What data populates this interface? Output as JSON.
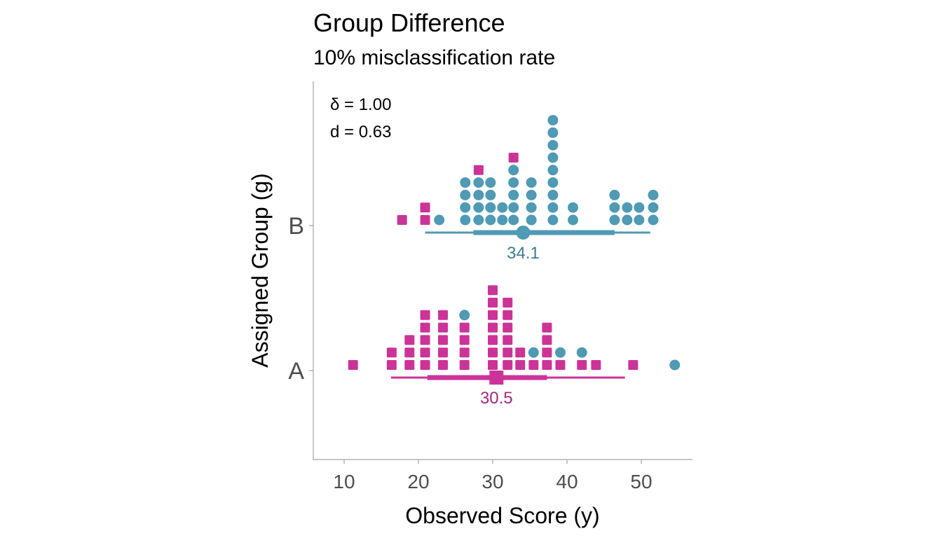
{
  "chart_data": {
    "type": "dotplot",
    "title": "Group Difference",
    "subtitle": "10% misclassification rate",
    "xlabel": "Observed Score (y)",
    "ylabel": "Assigned Group (g)",
    "xlim": [
      6,
      57
    ],
    "x_ticks": [
      10,
      20,
      30,
      40,
      50
    ],
    "categories": [
      "A",
      "B"
    ],
    "annotations": [
      "δ = 1.00",
      "d = 0.63"
    ],
    "colors": {
      "A": "#cc3399",
      "B": "#4f9ab4",
      "A_label": "#a3287b",
      "B_label": "#3e7c93"
    },
    "groups": [
      {
        "name": "A",
        "median": 30.5,
        "median_label": "30.5",
        "interval_outer": [
          16.3,
          47.8
        ],
        "interval_inner": [
          21.2,
          37.3
        ],
        "stacks": [
          {
            "x": 11.2,
            "shapes": [
              "square"
            ]
          },
          {
            "x": 16.4,
            "shapes": [
              "square",
              "square"
            ]
          },
          {
            "x": 18.8,
            "shapes": [
              "square",
              "square",
              "square"
            ]
          },
          {
            "x": 20.9,
            "shapes": [
              "square",
              "square",
              "square",
              "square",
              "square"
            ]
          },
          {
            "x": 23.3,
            "shapes": [
              "square",
              "square",
              "square",
              "square",
              "square"
            ]
          },
          {
            "x": 26.2,
            "shapes": [
              "square",
              "square",
              "square",
              "square",
              "circle"
            ]
          },
          {
            "x": 30.0,
            "shapes": [
              "square",
              "square",
              "square",
              "square",
              "square",
              "square",
              "square"
            ]
          },
          {
            "x": 32.0,
            "shapes": [
              "square",
              "square",
              "square",
              "square",
              "square",
              "square"
            ]
          },
          {
            "x": 33.7,
            "shapes": [
              "square",
              "square"
            ]
          },
          {
            "x": 35.5,
            "shapes": [
              "square",
              "circle"
            ]
          },
          {
            "x": 37.3,
            "shapes": [
              "square",
              "square",
              "square",
              "square"
            ]
          },
          {
            "x": 39.1,
            "shapes": [
              "square",
              "circle"
            ]
          },
          {
            "x": 42.0,
            "shapes": [
              "square",
              "circle"
            ]
          },
          {
            "x": 43.9,
            "shapes": [
              "square"
            ]
          },
          {
            "x": 48.9,
            "shapes": [
              "square"
            ]
          },
          {
            "x": 54.5,
            "shapes": [
              "circle"
            ]
          }
        ]
      },
      {
        "name": "B",
        "median": 34.1,
        "median_label": "34.1",
        "interval_outer": [
          20.9,
          51.2
        ],
        "interval_inner": [
          27.4,
          46.4
        ],
        "stacks": [
          {
            "x": 17.8,
            "shapes": [
              "square"
            ]
          },
          {
            "x": 20.9,
            "shapes": [
              "square",
              "square"
            ]
          },
          {
            "x": 22.8,
            "shapes": [
              "circle"
            ]
          },
          {
            "x": 26.3,
            "shapes": [
              "circle",
              "circle",
              "circle",
              "circle"
            ]
          },
          {
            "x": 28.1,
            "shapes": [
              "circle",
              "circle",
              "circle",
              "circle",
              "square"
            ]
          },
          {
            "x": 29.7,
            "shapes": [
              "circle",
              "circle",
              "circle",
              "circle"
            ]
          },
          {
            "x": 31.3,
            "shapes": [
              "circle",
              "circle"
            ]
          },
          {
            "x": 32.8,
            "shapes": [
              "circle",
              "circle",
              "circle",
              "circle",
              "circle",
              "square"
            ]
          },
          {
            "x": 35.2,
            "shapes": [
              "circle",
              "circle",
              "circle",
              "circle"
            ]
          },
          {
            "x": 38.1,
            "shapes": [
              "circle",
              "circle",
              "circle",
              "circle",
              "circle",
              "circle",
              "circle",
              "circle",
              "circle"
            ]
          },
          {
            "x": 40.8,
            "shapes": [
              "circle",
              "circle"
            ]
          },
          {
            "x": 46.4,
            "shapes": [
              "circle",
              "circle",
              "circle"
            ]
          },
          {
            "x": 48.1,
            "shapes": [
              "circle",
              "circle"
            ]
          },
          {
            "x": 49.7,
            "shapes": [
              "circle",
              "circle"
            ]
          },
          {
            "x": 51.6,
            "shapes": [
              "circle",
              "circle",
              "circle"
            ]
          }
        ]
      }
    ]
  }
}
